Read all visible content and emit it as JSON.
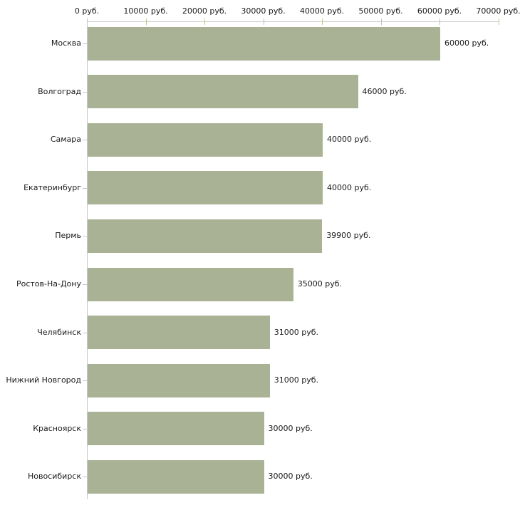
{
  "chart_data": {
    "type": "bar",
    "orientation": "horizontal",
    "categories": [
      "Москва",
      "Волгоград",
      "Самара",
      "Екатеринбург",
      "Пермь",
      "Ростов-На-Дону",
      "Челябинск",
      "Нижний Новгород",
      "Красноярск",
      "Новосибирск"
    ],
    "values": [
      60000,
      46000,
      40000,
      40000,
      39900,
      35000,
      31000,
      31000,
      30000,
      30000
    ],
    "value_labels": [
      "60000 руб.",
      "46000 руб.",
      "40000 руб.",
      "40000 руб.",
      "39900 руб.",
      "35000 руб.",
      "31000 руб.",
      "31000 руб.",
      "30000 руб.",
      "30000 руб."
    ],
    "x_ticks": [
      0,
      10000,
      20000,
      30000,
      40000,
      50000,
      60000,
      70000
    ],
    "x_tick_labels": [
      "0 руб.",
      "10000 руб.",
      "20000 руб.",
      "30000 руб.",
      "40000 руб.",
      "50000 руб.",
      "60000 руб.",
      "70000 руб."
    ],
    "xlim": [
      0,
      70000
    ],
    "xlabel": "",
    "ylabel": "",
    "title": "",
    "grid": false,
    "legend": false,
    "axis_position": "top",
    "bar_color": "#aab296",
    "axis_color": "#c8c8c8",
    "tick_color": "#c2c295",
    "text_color": "#1a1a1a",
    "background_color": "#ffffff"
  }
}
